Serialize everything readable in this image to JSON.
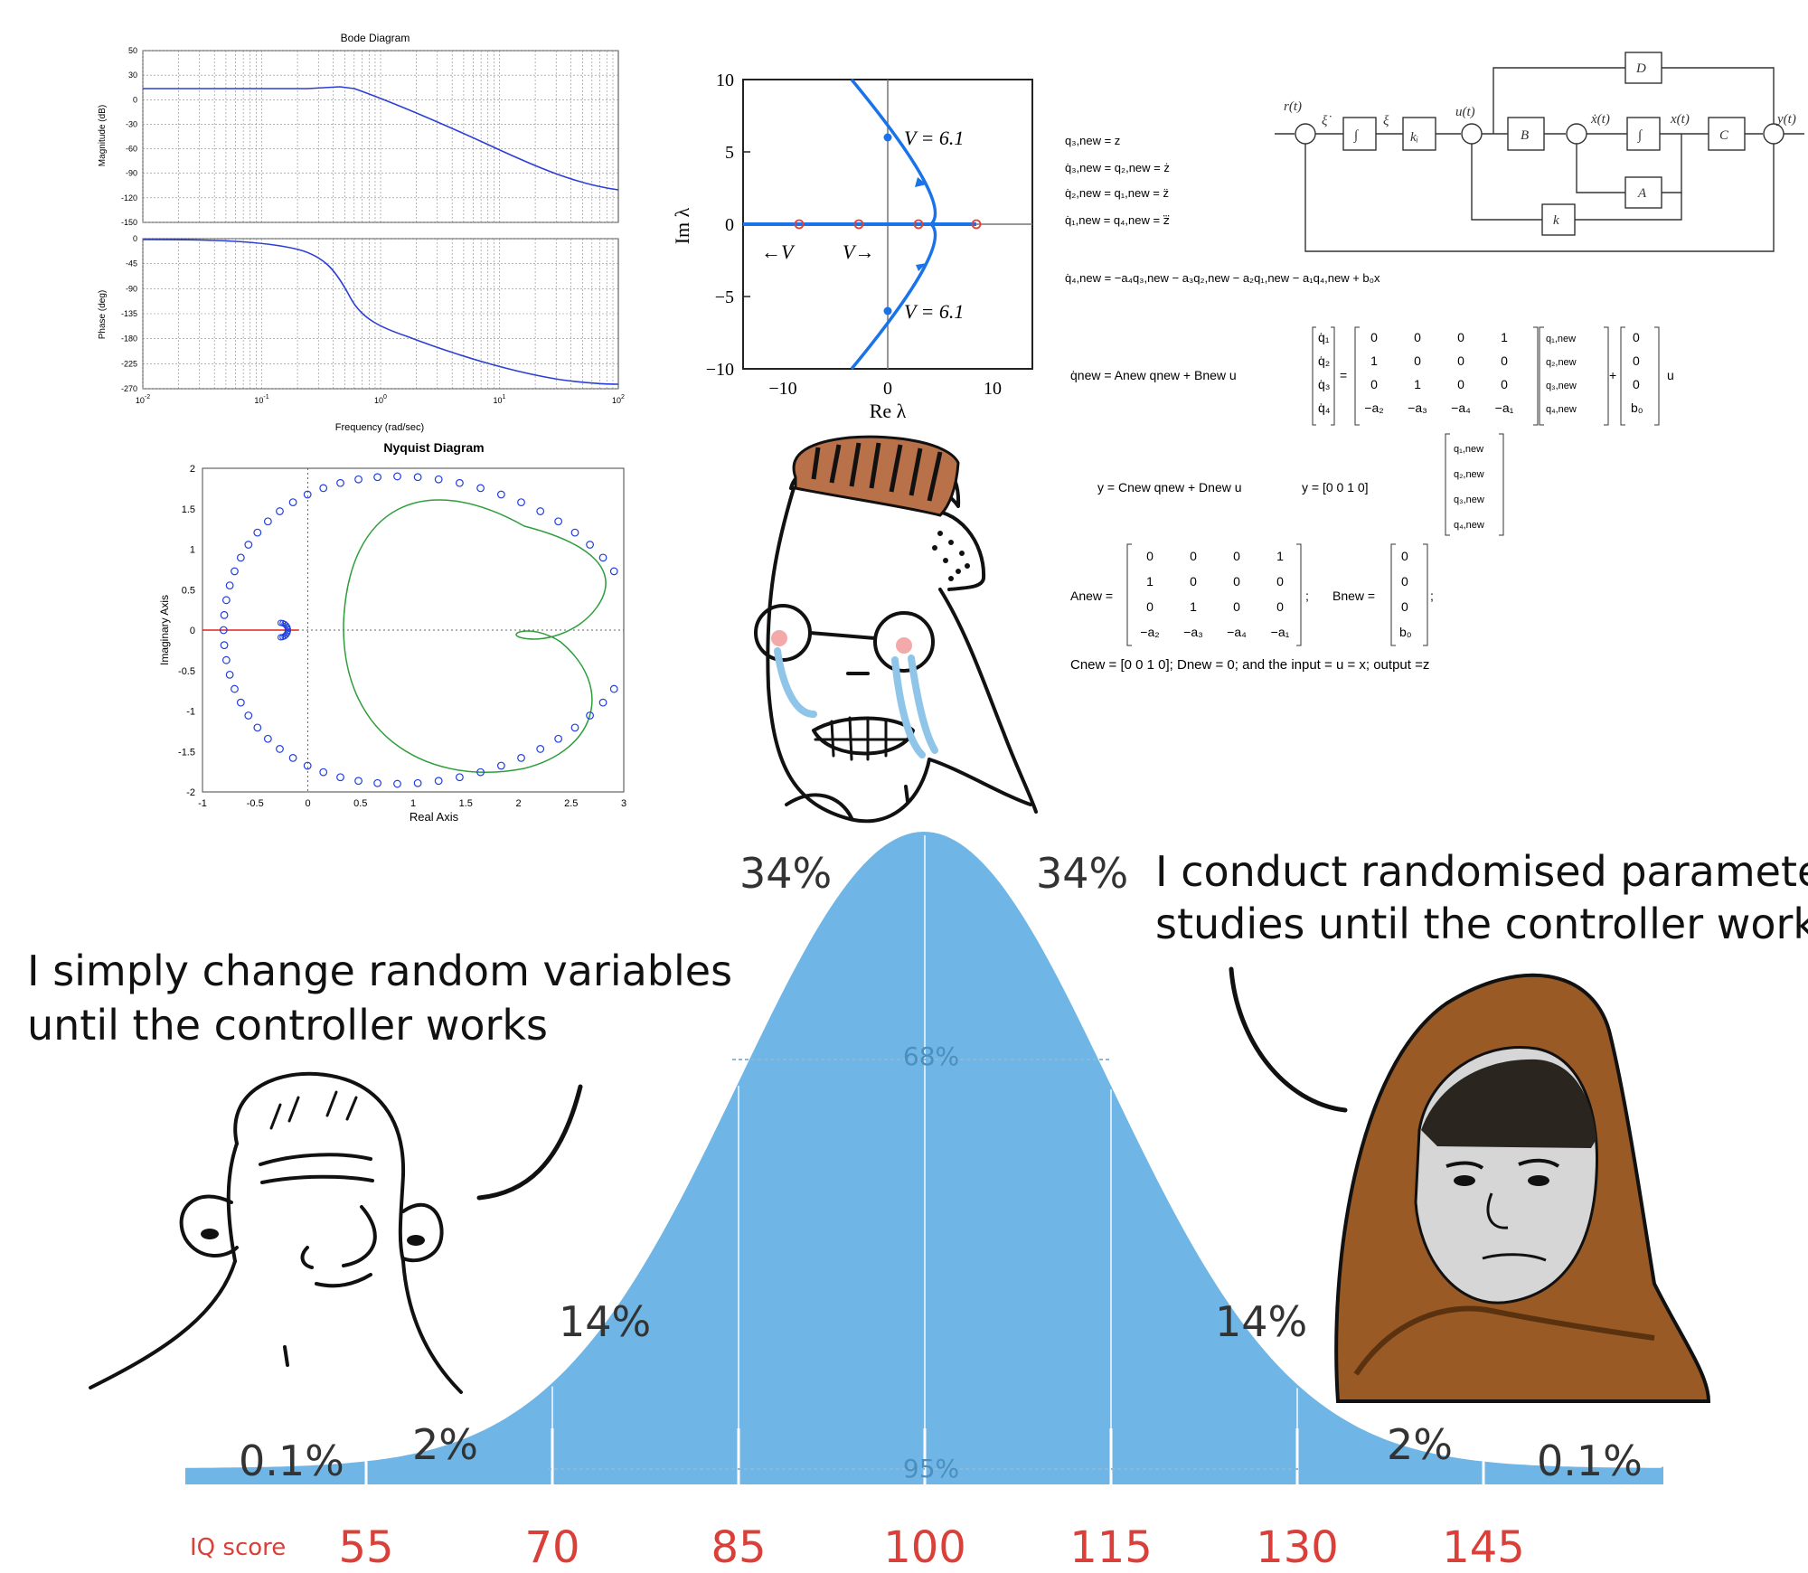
{
  "bode": {
    "title": "Bode Diagram",
    "mag_label": "Magnitude (dB)",
    "phase_label": "Phase (deg)",
    "freq_label": "Frequency  (rad/sec)",
    "mag_ticks": [
      "50",
      "30",
      "0",
      "-30",
      "-60",
      "-90",
      "-120",
      "-150"
    ],
    "phase_ticks": [
      "0",
      "-45",
      "-90",
      "-135",
      "-180",
      "-225",
      "-270"
    ],
    "freq_ticks": [
      {
        "base": "10",
        "exp": "-2"
      },
      {
        "base": "10",
        "exp": "-1"
      },
      {
        "base": "10",
        "exp": "0"
      },
      {
        "base": "10",
        "exp": "1"
      },
      {
        "base": "10",
        "exp": "2"
      }
    ],
    "color": "#2b3fd6"
  },
  "rootlocus": {
    "ylabel": "Im λ",
    "xlabel": "Re λ",
    "yticks": [
      "10",
      "5",
      "0",
      "−5",
      "−10"
    ],
    "xticks": [
      "−10",
      "0",
      "10"
    ],
    "v_upper": "V = 6.1",
    "v_lower": "V = 6.1",
    "left_arrow": "←V",
    "right_arrow": "V→",
    "color": "#1a73e8"
  },
  "nyquist": {
    "title": "Nyquist Diagram",
    "xlabel": "Real Axis",
    "ylabel": "Imaginary Axis",
    "xticks": [
      "-1",
      "-0.5",
      "0",
      "0.5",
      "1",
      "1.5",
      "2",
      "2.5",
      "3"
    ],
    "yticks": [
      "2",
      "1.5",
      "1",
      "0.5",
      "0",
      "-0.5",
      "-1",
      "-1.5",
      "-2"
    ],
    "blue": "#1f3fe0",
    "green": "#2e9e3c"
  },
  "equations": {
    "l1": "q₃,new = z",
    "l2": "q̇₃,new = q₂,new = ż",
    "l3": "q̇₂,new = q₁,new = z̈",
    "l4": "q̇₁,new = q₄,new = z⃛",
    "l5": "q̇₄,new = −a₄q₃,new − a₃q₂,new − a₂q₁,new − a₁q₄,new + b₀x",
    "state_eq": "q̇new = Anew qnew + Bnew u",
    "output_eq": "y = Cnew qnew + Dnew u",
    "y_eq": "y = [0  0  1  0]",
    "qdot_vec": [
      "q̇₁",
      "q̇₂",
      "q̇₃",
      "q̇₄"
    ],
    "A_rows": [
      [
        "0",
        "0",
        "0",
        "1"
      ],
      [
        "1",
        "0",
        "0",
        "0"
      ],
      [
        "0",
        "1",
        "0",
        "0"
      ],
      [
        "−a₂",
        "−a₃",
        "−a₄",
        "−a₁"
      ]
    ],
    "qnew_vec": [
      "q₁,new",
      "q₂,new",
      "q₃,new",
      "q₄,new"
    ],
    "B_vec": [
      "0",
      "0",
      "0",
      "b₀"
    ],
    "u": "u",
    "A_label": "Anew =",
    "B_label": "Bnew =",
    "C_line": "Cnew = [0  0  1  0];     Dnew = 0;     and the input = u = x; output =z"
  },
  "block": {
    "r": "r(t)",
    "u": "u(t)",
    "x": "x(t)",
    "y": "y(t)",
    "xdot": "ẋ(t)",
    "xi_dot": "ξ̇",
    "xi": "ξ",
    "D": "D",
    "B": "B",
    "C": "C",
    "A": "A",
    "k": "k",
    "ki": "kᵢ",
    "int": "∫"
  },
  "bell": {
    "color": "#6fb6e6",
    "pct_34_left": "34%",
    "pct_34_right": "34%",
    "pct_68": "68%",
    "pct_14_left": "14%",
    "pct_14_right": "14%",
    "pct_2_left": "2%",
    "pct_2_right": "2%",
    "pct_01_left": "0.1%",
    "pct_01_right": "0.1%",
    "pct_95": "95%",
    "iq_label": "IQ score",
    "iq_ticks": [
      "55",
      "70",
      "85",
      "100",
      "115",
      "130",
      "145"
    ],
    "iq_color": "#d9403a"
  },
  "captions": {
    "left": [
      "I simply change random variables",
      "until the controller works"
    ],
    "right": [
      "I conduct randomised parameter",
      "studies until the controller works"
    ]
  }
}
